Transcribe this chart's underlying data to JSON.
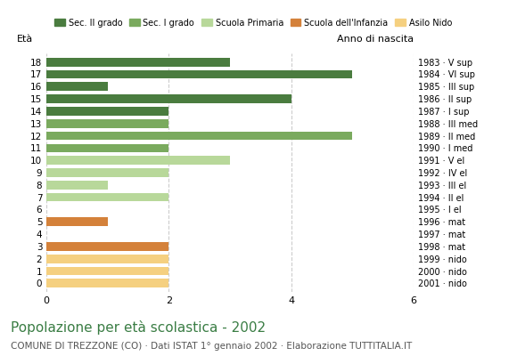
{
  "ages": [
    18,
    17,
    16,
    15,
    14,
    13,
    12,
    11,
    10,
    9,
    8,
    7,
    6,
    5,
    4,
    3,
    2,
    1,
    0
  ],
  "birth_years": [
    "1983 · V sup",
    "1984 · VI sup",
    "1985 · III sup",
    "1986 · II sup",
    "1987 · I sup",
    "1988 · III med",
    "1989 · II med",
    "1990 · I med",
    "1991 · V el",
    "1992 · IV el",
    "1993 · III el",
    "1994 · II el",
    "1995 · I el",
    "1996 · mat",
    "1997 · mat",
    "1998 · mat",
    "1999 · nido",
    "2000 · nido",
    "2001 · nido"
  ],
  "values": [
    3,
    5,
    1,
    4,
    2,
    2,
    5,
    2,
    3,
    2,
    1,
    2,
    0,
    1,
    0,
    2,
    2,
    2,
    2
  ],
  "categories": {
    "Sec. II grado": {
      "ages": [
        18,
        17,
        16,
        15,
        14
      ],
      "color": "#4a7c3f"
    },
    "Sec. I grado": {
      "ages": [
        13,
        12,
        11
      ],
      "color": "#7aaa5e"
    },
    "Scuola Primaria": {
      "ages": [
        10,
        9,
        8,
        7,
        6
      ],
      "color": "#b8d89a"
    },
    "Scuola dell'Infanzia": {
      "ages": [
        5,
        4,
        3
      ],
      "color": "#d4813a"
    },
    "Asilo Nido": {
      "ages": [
        2,
        1,
        0
      ],
      "color": "#f5d080"
    }
  },
  "bar_colors": {
    "18": "#4a7c3f",
    "17": "#4a7c3f",
    "16": "#4a7c3f",
    "15": "#4a7c3f",
    "14": "#4a7c3f",
    "13": "#7aaa5e",
    "12": "#7aaa5e",
    "11": "#7aaa5e",
    "10": "#b8d89a",
    "9": "#b8d89a",
    "8": "#b8d89a",
    "7": "#b8d89a",
    "6": "#b8d89a",
    "5": "#d4813a",
    "4": "#d4813a",
    "3": "#d4813a",
    "2": "#f5d080",
    "1": "#f5d080",
    "0": "#f5d080"
  },
  "xlim": [
    0,
    6
  ],
  "xticks": [
    0,
    2,
    4,
    6
  ],
  "title": "Popolazione per età scolastica - 2002",
  "subtitle": "COMUNE DI TREZZONE (CO) · Dati ISTAT 1° gennaio 2002 · Elaborazione TUTTITALIA.IT",
  "ylabel_left": "Età",
  "ylabel_right": "Anno di nascita",
  "legend_labels": [
    "Sec. II grado",
    "Sec. I grado",
    "Scuola Primaria",
    "Scuola dell'Infanzia",
    "Asilo Nido"
  ],
  "legend_colors": [
    "#4a7c3f",
    "#7aaa5e",
    "#b8d89a",
    "#d4813a",
    "#f5d080"
  ],
  "title_color": "#3a7d44",
  "subtitle_color": "#555555",
  "grid_color": "#cccccc",
  "bar_height": 0.7
}
